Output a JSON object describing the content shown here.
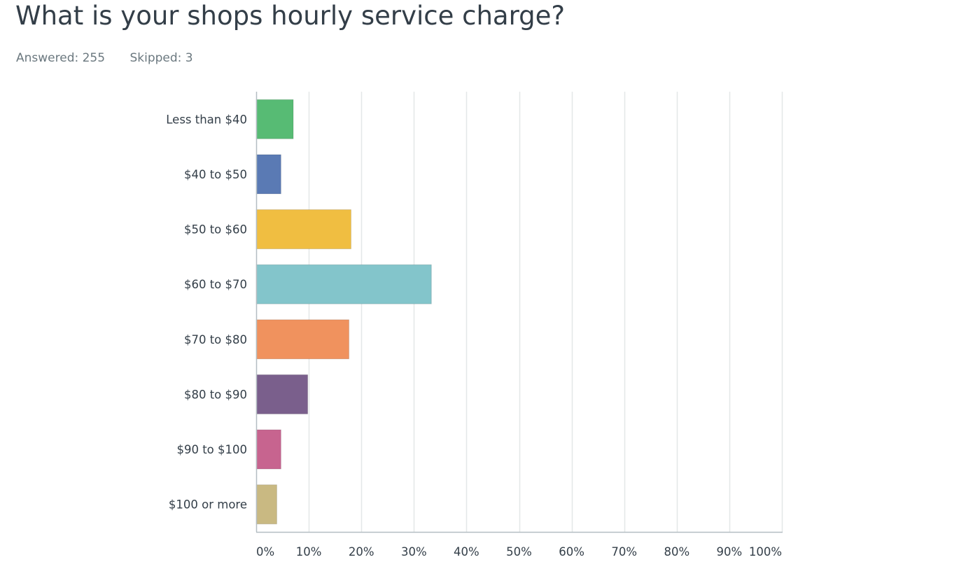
{
  "question": {
    "title": "What is your shops hourly service charge?"
  },
  "stats": {
    "answered": "Answered: 255",
    "skipped": "Skipped: 3"
  },
  "chart_data": {
    "type": "bar",
    "orientation": "horizontal",
    "categories": [
      "Less than $40",
      "$40 to $50",
      "$50 to $60",
      "$60 to $70",
      "$70 to $80",
      "$80 to $90",
      "$90 to $100",
      "$100 or more"
    ],
    "values": [
      7.06,
      4.71,
      18.04,
      33.33,
      17.65,
      9.8,
      4.71,
      3.92
    ],
    "colors": [
      "#57bb74",
      "#5a7ab4",
      "#f0be41",
      "#83c5cb",
      "#f0925e",
      "#7a5f8c",
      "#c7648f",
      "#c9b982"
    ],
    "x_ticks": [
      "0%",
      "10%",
      "20%",
      "30%",
      "40%",
      "50%",
      "60%",
      "70%",
      "80%",
      "90%",
      "100%"
    ],
    "xlim": [
      0,
      100
    ],
    "grid": true,
    "grid_color": "#e4e7e8",
    "axis_color": "#b4bdc2"
  }
}
